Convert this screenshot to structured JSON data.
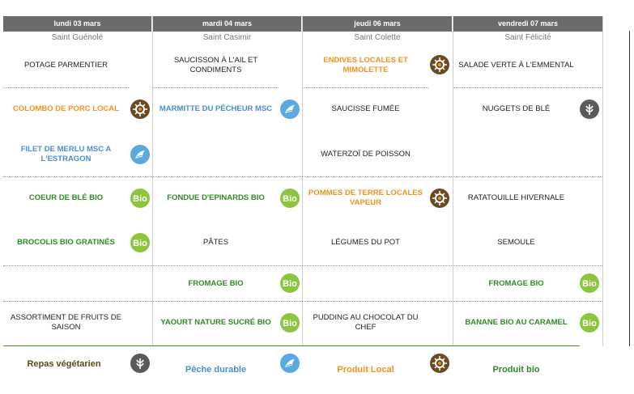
{
  "days": [
    {
      "date": "lundi 03 mars",
      "saint": "Saint Guénolé"
    },
    {
      "date": "mardi 04 mars",
      "saint": "Saint Casimir"
    },
    {
      "date": "jeudi 06 mars",
      "saint": "Saint Colette"
    },
    {
      "date": "vendredi 07 mars",
      "saint": "Saint Félicité"
    }
  ],
  "menu": {
    "d1": {
      "r1": "POTAGE PARMENTIER",
      "r2": "COLOMBO DE PORC LOCAL",
      "r3": "FILET DE MERLU MSC A L'ESTRAGON",
      "r4": "COEUR DE BLÉ BIO",
      "r5": "BROCOLIS BIO GRATINÉS",
      "r6": "",
      "r7": "ASSORTIMENT DE FRUITS DE SAISON"
    },
    "d2": {
      "r1": "SAUCISSON À L'AIL ET CONDIMENTS",
      "r2": "MARMITTE DU PÊCHEUR MSC",
      "r4": "FONDUE D'EPINARDS BIO",
      "r5": "PÂTES",
      "r6": "FROMAGE BIO",
      "r7": "YAOURT NATURE SUCRÉ BIO"
    },
    "d3": {
      "r1": "ENDIVES LOCALES ET MIMOLETTE",
      "r2": "SAUCISSE FUMÉE",
      "r3": "WATERZOÏ DE POISSON",
      "r4": "POMMES DE TERRE LOCALES VAPEUR",
      "r5": "LÉGUMES DU POT",
      "r7": "PUDDING AU CHOCOLAT DU CHEF"
    },
    "d4": {
      "r1": "SALADE VERTE À L'EMMENTAL",
      "r2": "NUGGETS DE BLÉ",
      "r4": "RATATOUILLE HIVERNALE",
      "r5": "SEMOULE",
      "r6": "FROMAGE BIO",
      "r7": "BANANE BIO AU CARAMEL"
    }
  },
  "legend": {
    "vegetarien": "Repas végétarien",
    "peche": "Pêche durable",
    "local": "Produit Local",
    "bio": "Produit bio"
  },
  "badges": {
    "bio": "Bio"
  },
  "colors": {
    "header": "#6b6b6b",
    "green": "#2f8a26",
    "orange": "#f0941e",
    "blue": "#4a8ed0",
    "bio_badge": "#8cc63f",
    "local_badge": "#6b4a22",
    "peche_badge": "#5aa9e0",
    "veg_badge": "#5a5a5a"
  }
}
